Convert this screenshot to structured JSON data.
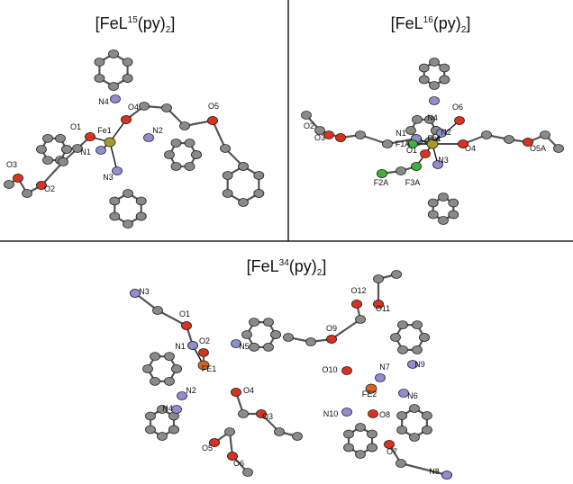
{
  "panels": [
    {
      "title": {
        "base": "[FeL",
        "sup": "15",
        "mid": "(py)",
        "sub": "2",
        "end": "]"
      },
      "labels": [
        "N4",
        "O4",
        "O5",
        "O1",
        "Fe1",
        "N2",
        "N1",
        "O3",
        "N3",
        "O2"
      ]
    },
    {
      "title": {
        "base": "[FeL",
        "sup": "16",
        "mid": "(py)",
        "sub": "2",
        "end": "]"
      },
      "labels": [
        "O6",
        "N4",
        "N2",
        "O2",
        "O3",
        "N1",
        "Fe1",
        "F1A",
        "O1",
        "O4",
        "O5A",
        "N3",
        "F2A",
        "F3A"
      ]
    },
    {
      "title": {
        "base": "[FeL",
        "sup": "34",
        "mid": "(py)",
        "sub": "2",
        "end": "]"
      },
      "labels": [
        "N3",
        "O12",
        "O11",
        "O1",
        "O9",
        "N1",
        "O2",
        "N5",
        "FE1",
        "O10",
        "N7",
        "N9",
        "N2",
        "O4",
        "FE2",
        "N6",
        "N4",
        "O3",
        "N10",
        "O8",
        "O5",
        "O6",
        "O7",
        "N8"
      ]
    }
  ]
}
